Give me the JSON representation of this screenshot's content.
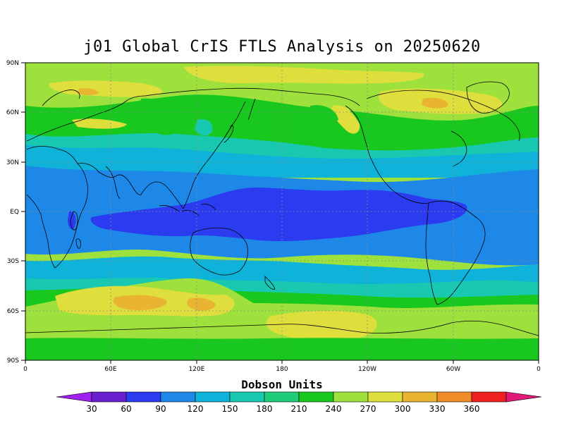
{
  "title": "j01 Global CrIS FTLS Analysis on 20250620",
  "lat_labels": [
    "90N",
    "60N",
    "30N",
    "EQ",
    "30S",
    "60S",
    "90S"
  ],
  "lon_labels": [
    "0",
    "60E",
    "120E",
    "180",
    "120W",
    "60W",
    "0"
  ],
  "colorbar": {
    "title": "Dobson Units",
    "labels": [
      "30",
      "60",
      "90",
      "120",
      "150",
      "180",
      "210",
      "240",
      "270",
      "300",
      "330",
      "360"
    ],
    "colors": [
      "#a020f0",
      "#6a1fd0",
      "#2b3cf0",
      "#1e88e8",
      "#0fb2d8",
      "#19c8b0",
      "#1fcc78",
      "#19c81e",
      "#9ee03c",
      "#dede3c",
      "#e8b432",
      "#ef8c28",
      "#ef2020",
      "#e01a78"
    ]
  },
  "field_colors": {
    "low_60_90": "#2b3cf0",
    "low_90_120": "#1e88e8",
    "mid_120_150": "#0fb2d8",
    "mid_150_180": "#19c8b0",
    "mid_180_210": "#19c81e",
    "mid_210_240": "#9ee03c",
    "high_240_270": "#dede3c",
    "high_270_300": "#e8b432"
  }
}
